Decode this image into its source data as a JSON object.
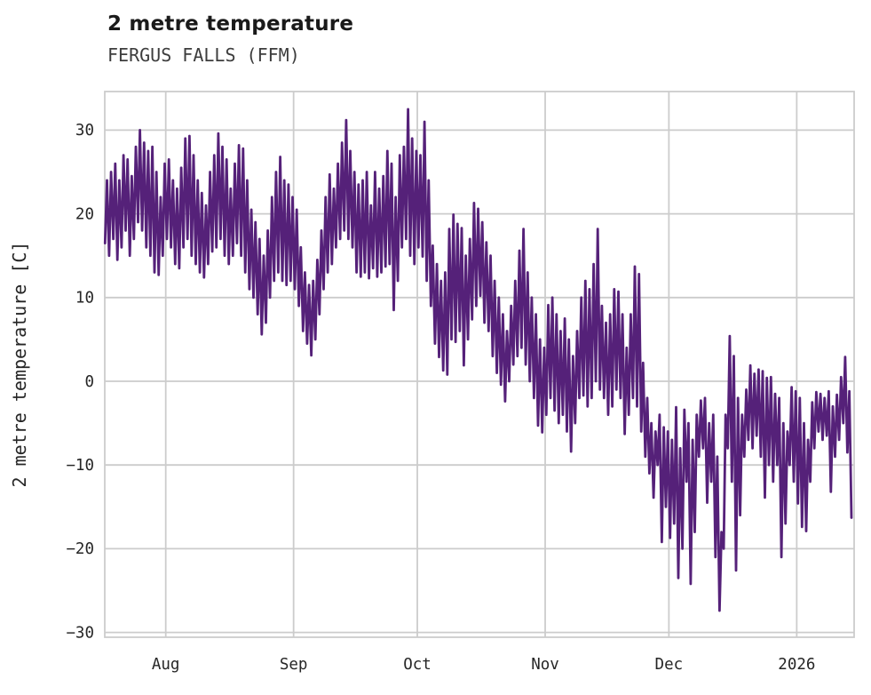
{
  "header": {
    "title": "2 metre temperature",
    "subtitle": "FERGUS FALLS (FFM)"
  },
  "chart_data": {
    "type": "line",
    "title": "2 metre temperature",
    "subtitle": "FERGUS FALLS (FFM)",
    "xlabel": "",
    "ylabel": "2 metre temperature [C]",
    "grid": true,
    "legend": false,
    "line_color": "#552179",
    "grid_color": "#cccccc",
    "text_color": "#262626",
    "ylim": [
      -30.6,
      34.6
    ],
    "xlim_days": [
      0,
      181.6
    ],
    "y_ticks": [
      {
        "value": 30,
        "label": "30"
      },
      {
        "value": 20,
        "label": "20"
      },
      {
        "value": 10,
        "label": "10"
      },
      {
        "value": 0,
        "label": "0"
      },
      {
        "value": -10,
        "label": "−10"
      },
      {
        "value": -20,
        "label": "−20"
      },
      {
        "value": -30,
        "label": "−30"
      }
    ],
    "x_ticks": [
      {
        "day": 15,
        "label": "Aug"
      },
      {
        "day": 46,
        "label": "Sep"
      },
      {
        "day": 76,
        "label": "Oct"
      },
      {
        "day": 107,
        "label": "Nov"
      },
      {
        "day": 137,
        "label": "Dec"
      },
      {
        "day": 168,
        "label": "2026"
      }
    ],
    "sampling_note": "two samples per day (daily minimum then daily maximum), day 0 at left plot edge, mid-July through mid-January",
    "series": [
      {
        "name": "2 metre temperature",
        "daily_minmax": [
          [
            16.5,
            24
          ],
          [
            15,
            25
          ],
          [
            17,
            26
          ],
          [
            14.5,
            24
          ],
          [
            16,
            27
          ],
          [
            18,
            26.5
          ],
          [
            15,
            24.5
          ],
          [
            17,
            28
          ],
          [
            19,
            30
          ],
          [
            18,
            28.5
          ],
          [
            16,
            27.5
          ],
          [
            15,
            28
          ],
          [
            13,
            25
          ],
          [
            12.7,
            22
          ],
          [
            15,
            26
          ],
          [
            17,
            26.5
          ],
          [
            16,
            24
          ],
          [
            14,
            23
          ],
          [
            13.5,
            25.5
          ],
          [
            16,
            29
          ],
          [
            17,
            29.3
          ],
          [
            15,
            27
          ],
          [
            14,
            24
          ],
          [
            13,
            22.5
          ],
          [
            12.4,
            21
          ],
          [
            14,
            25
          ],
          [
            15.5,
            27
          ],
          [
            16,
            29.6
          ],
          [
            17,
            28
          ],
          [
            15,
            26.5
          ],
          [
            14,
            23
          ],
          [
            15,
            26
          ],
          [
            16.5,
            28.2
          ],
          [
            15,
            27.8
          ],
          [
            13,
            24
          ],
          [
            11,
            20.5
          ],
          [
            10,
            19
          ],
          [
            8,
            17
          ],
          [
            5.6,
            15
          ],
          [
            7,
            18
          ],
          [
            10,
            22
          ],
          [
            12,
            25
          ],
          [
            13,
            26.8
          ],
          [
            12,
            24
          ],
          [
            11.5,
            23.5
          ],
          [
            12,
            22
          ],
          [
            11,
            20.5
          ],
          [
            9,
            16
          ],
          [
            6,
            13
          ],
          [
            4.5,
            11.5
          ],
          [
            3.1,
            12
          ],
          [
            5,
            14.5
          ],
          [
            8,
            18
          ],
          [
            11,
            22
          ],
          [
            13,
            24.7
          ],
          [
            14,
            23
          ],
          [
            16,
            26
          ],
          [
            17,
            28.5
          ],
          [
            18,
            31.2
          ],
          [
            17,
            27.5
          ],
          [
            16,
            25
          ],
          [
            13,
            23.5
          ],
          [
            12.5,
            24
          ],
          [
            13,
            25
          ],
          [
            12.3,
            21
          ],
          [
            13.5,
            25
          ],
          [
            12.5,
            23
          ],
          [
            13,
            24.5
          ],
          [
            13.7,
            27.5
          ],
          [
            14,
            26
          ],
          [
            8.5,
            22
          ],
          [
            12,
            27
          ],
          [
            16,
            28
          ],
          [
            17,
            32.5
          ],
          [
            15,
            29
          ],
          [
            14,
            27.5
          ],
          [
            16,
            27
          ],
          [
            14.9,
            31
          ],
          [
            12,
            24
          ],
          [
            9,
            16.2
          ],
          [
            4.5,
            14
          ],
          [
            2.9,
            12
          ],
          [
            1.3,
            13
          ],
          [
            0.8,
            18.2
          ],
          [
            5,
            19.9
          ],
          [
            4.7,
            18.8
          ],
          [
            6,
            18.3
          ],
          [
            1.9,
            15
          ],
          [
            5,
            17
          ],
          [
            7.4,
            21.3
          ],
          [
            9,
            20.6
          ],
          [
            10.2,
            19
          ],
          [
            7,
            16.6
          ],
          [
            6,
            15
          ],
          [
            3,
            12
          ],
          [
            1,
            10
          ],
          [
            -0.4,
            8
          ],
          [
            -2.4,
            6
          ],
          [
            0,
            9
          ],
          [
            2,
            12
          ],
          [
            3,
            15.6
          ],
          [
            4,
            18.2
          ],
          [
            2,
            13
          ],
          [
            0,
            10
          ],
          [
            -2,
            8
          ],
          [
            -5.3,
            5
          ],
          [
            -6.1,
            4
          ],
          [
            -4,
            9.1
          ],
          [
            -2,
            10
          ],
          [
            -3.5,
            8
          ],
          [
            -5,
            6
          ],
          [
            -4,
            7.5
          ],
          [
            -6,
            5
          ],
          [
            -8.4,
            3
          ],
          [
            -5,
            6
          ],
          [
            -2,
            10
          ],
          [
            -1.7,
            12
          ],
          [
            -3,
            11
          ],
          [
            -2,
            14
          ],
          [
            0,
            18.2
          ],
          [
            -1,
            9
          ],
          [
            -2,
            7
          ],
          [
            -4,
            8
          ],
          [
            -3,
            11
          ],
          [
            -1,
            10.7
          ],
          [
            -2,
            8
          ],
          [
            -6.3,
            4
          ],
          [
            -4,
            8
          ],
          [
            -2,
            13.7
          ],
          [
            -3,
            12.8
          ],
          [
            -6,
            2.2
          ],
          [
            -9,
            -2
          ],
          [
            -11,
            -5
          ],
          [
            -13.9,
            -6
          ],
          [
            -10,
            -4
          ],
          [
            -19.2,
            -5.5
          ],
          [
            -15,
            -6
          ],
          [
            -18.7,
            -7
          ],
          [
            -17,
            -3.1
          ],
          [
            -23.5,
            -8
          ],
          [
            -20,
            -3.4
          ],
          [
            -12,
            -5
          ],
          [
            -24.2,
            -7
          ],
          [
            -18,
            -4
          ],
          [
            -9,
            -2.3
          ],
          [
            -8,
            -2
          ],
          [
            -14.5,
            -5
          ],
          [
            -12,
            -4
          ],
          [
            -21,
            -9
          ],
          [
            -27.4,
            -18
          ],
          [
            -20,
            -4
          ],
          [
            -8,
            5.4
          ],
          [
            -12,
            3
          ],
          [
            -22.6,
            -2
          ],
          [
            -16,
            -4
          ],
          [
            -9,
            -1
          ],
          [
            -7,
            1.9
          ],
          [
            -8,
            0.9
          ],
          [
            -6.5,
            1.4
          ],
          [
            -9,
            1.2
          ],
          [
            -13.9,
            0.4
          ],
          [
            -10,
            0.5
          ],
          [
            -12,
            -1.5
          ],
          [
            -10,
            -2
          ],
          [
            -21,
            -5
          ],
          [
            -17,
            -6
          ],
          [
            -10,
            -0.7
          ],
          [
            -12,
            -1.2
          ],
          [
            -14.6,
            -2
          ],
          [
            -17.4,
            -5
          ],
          [
            -17.9,
            -7
          ],
          [
            -12,
            -2.5
          ],
          [
            -8,
            -1.3
          ],
          [
            -6,
            -1.5
          ],
          [
            -7,
            -2
          ],
          [
            -6.5,
            -1.2
          ],
          [
            -13.2,
            -3
          ],
          [
            -9,
            -1.6
          ],
          [
            -7,
            0.5
          ],
          [
            -5,
            2.9
          ],
          [
            -8.5,
            -1.2
          ],
          [
            -16.3,
            null
          ]
        ]
      }
    ]
  }
}
